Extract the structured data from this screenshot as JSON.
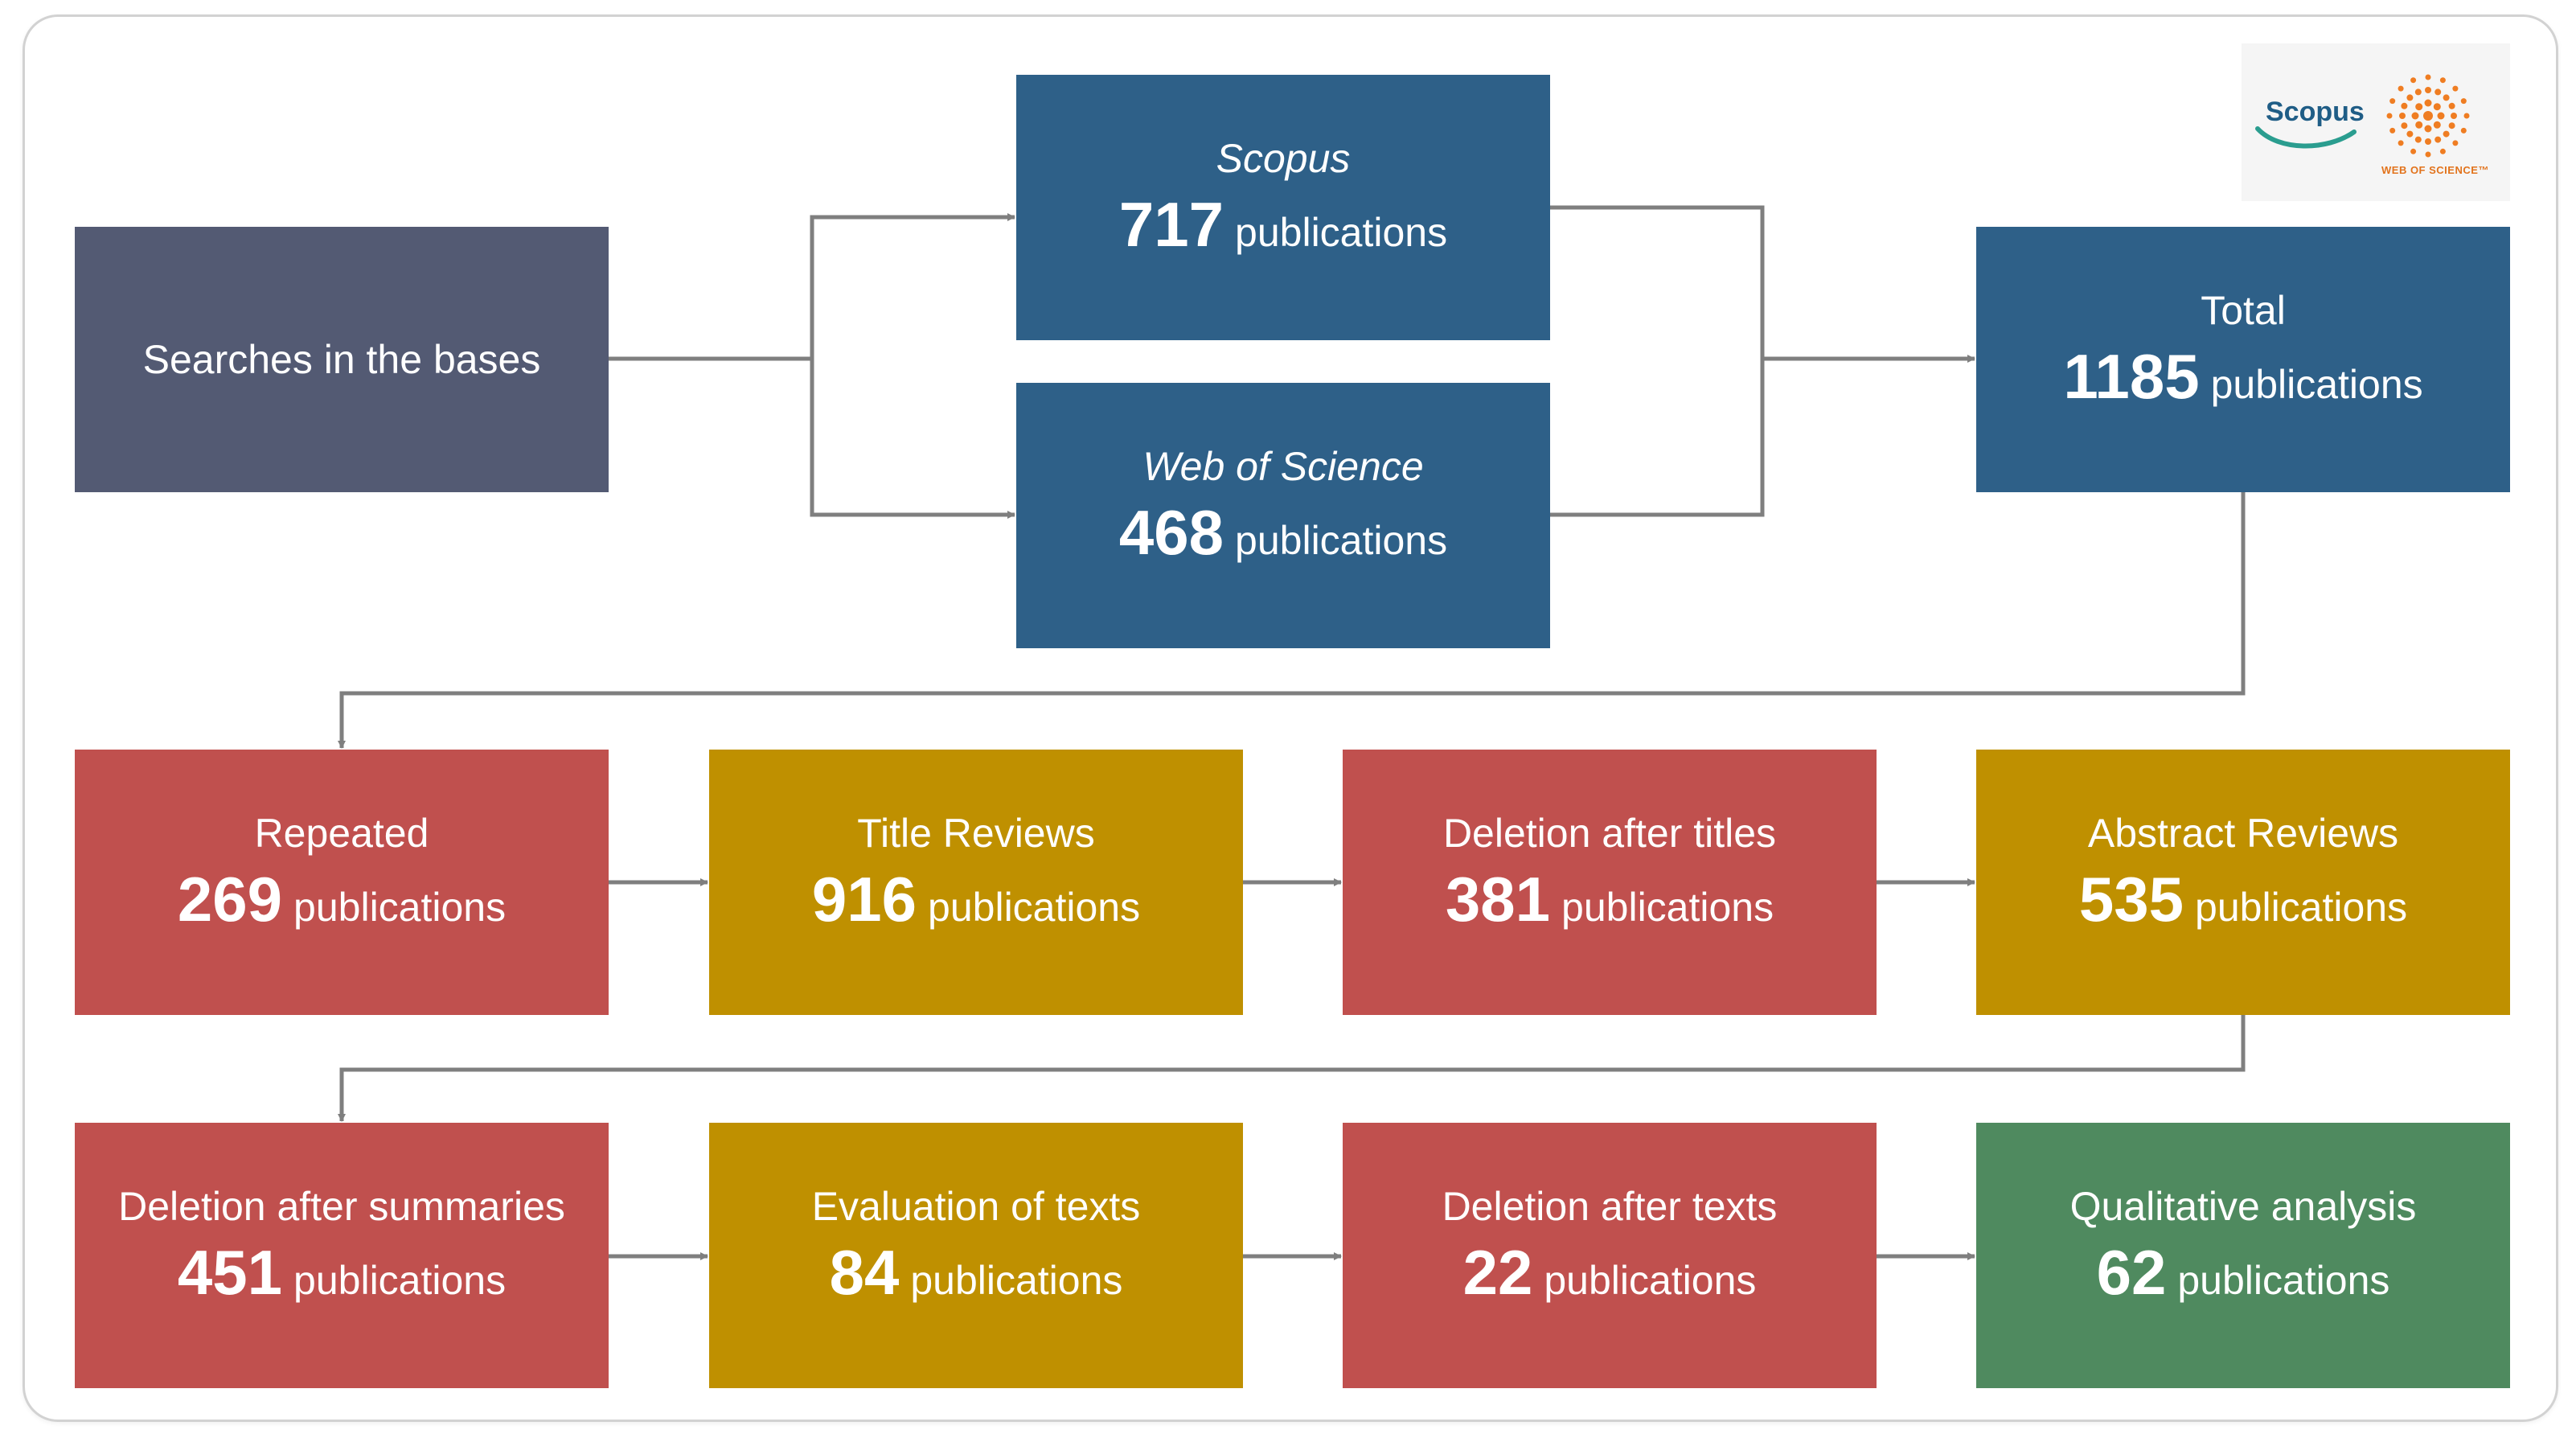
{
  "colors": {
    "start": "#535a73",
    "source": "#2e6088",
    "removed": "#c0504e",
    "review": "#bf9000",
    "final": "#4f8a5f",
    "connector": "#7f7f7f"
  },
  "logo": {
    "scopus": "Scopus",
    "wos": "WEB OF SCIENCE™"
  },
  "start": {
    "label": "Searches in the bases"
  },
  "sources": [
    {
      "label": "Scopus",
      "count": "717",
      "unit": "publications"
    },
    {
      "label": "Web of Science",
      "count": "468",
      "unit": "publications"
    }
  ],
  "total": {
    "label": "Total",
    "count": "1185",
    "unit": "publications"
  },
  "row2": [
    {
      "label": "Repeated",
      "count": "269",
      "unit": "publications"
    },
    {
      "label": "Title Reviews",
      "count": "916",
      "unit": "publications"
    },
    {
      "label": "Deletion after titles",
      "count": "381",
      "unit": "publications"
    },
    {
      "label": "Abstract Reviews",
      "count": "535",
      "unit": "publications"
    }
  ],
  "row3": [
    {
      "label": "Deletion after summaries",
      "count": "451",
      "unit": "publications"
    },
    {
      "label": "Evaluation of texts",
      "count": "84",
      "unit": "publications"
    },
    {
      "label": "Deletion after texts",
      "count": "22",
      "unit": "publications"
    },
    {
      "label": "Qualitative analysis",
      "count": "62",
      "unit": "publications"
    }
  ]
}
